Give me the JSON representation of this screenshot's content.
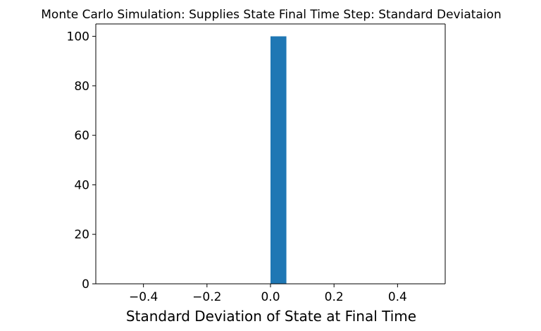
{
  "chart_data": {
    "type": "bar",
    "subtype": "histogram",
    "title": "Monte Carlo Simulation: Supplies State Final Time Step: Standard Deviataion",
    "xlabel": "Standard Deviation of State at Final Time",
    "ylabel": "",
    "xlim": [
      -0.55,
      0.55
    ],
    "ylim": [
      0,
      105
    ],
    "xticks": [
      -0.4,
      -0.2,
      0.0,
      0.2,
      0.4
    ],
    "xtick_labels": [
      "−0.4",
      "−0.2",
      "0.0",
      "0.2",
      "0.4"
    ],
    "yticks": [
      0,
      20,
      40,
      60,
      80,
      100
    ],
    "ytick_labels": [
      "0",
      "20",
      "40",
      "60",
      "80",
      "100"
    ],
    "bins": [
      {
        "x0": 0.0,
        "x1": 0.05,
        "count": 100
      }
    ],
    "bar_color": "#1f77b4",
    "grid": false,
    "legend": "none"
  }
}
